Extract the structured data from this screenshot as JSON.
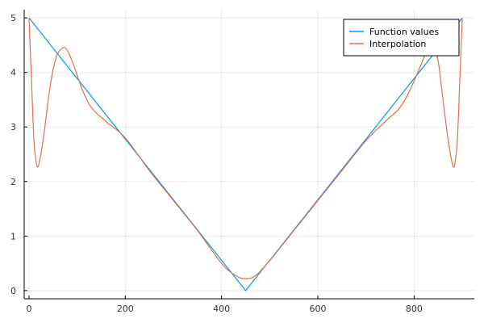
{
  "chart_data": {
    "type": "line",
    "title": "",
    "xlabel": "",
    "ylabel": "",
    "xlim": [
      -10,
      925
    ],
    "ylim": [
      -0.15,
      5.15
    ],
    "x_ticks": [
      0,
      200,
      400,
      600,
      800
    ],
    "y_ticks": [
      0,
      1,
      2,
      3,
      4,
      5
    ],
    "grid": true,
    "legend_position": "top-right",
    "series": [
      {
        "name": "Function values",
        "color": "#009AF9",
        "x": [
          0,
          450,
          900
        ],
        "y": [
          5.0,
          0.0,
          5.0
        ]
      },
      {
        "name": "Interpolation",
        "color": "#E26F46",
        "x": [
          0,
          5,
          10,
          15,
          20,
          30,
          40,
          50,
          60,
          75,
          90,
          110,
          130,
          160,
          200,
          250,
          300,
          350,
          400,
          430,
          450,
          470,
          500,
          550,
          600,
          650,
          700,
          740,
          770,
          790,
          810,
          825,
          840,
          850,
          860,
          870,
          880,
          885,
          890,
          895,
          900
        ],
        "y": [
          5.0,
          3.9,
          2.8,
          2.35,
          2.3,
          2.8,
          3.5,
          4.05,
          4.35,
          4.45,
          4.2,
          3.7,
          3.35,
          3.1,
          2.8,
          2.2,
          1.65,
          1.1,
          0.5,
          0.27,
          0.22,
          0.27,
          0.55,
          1.1,
          1.65,
          2.2,
          2.75,
          3.1,
          3.35,
          3.65,
          4.05,
          4.35,
          4.45,
          4.2,
          3.5,
          2.8,
          2.3,
          2.35,
          2.8,
          3.9,
          5.0
        ]
      }
    ]
  }
}
